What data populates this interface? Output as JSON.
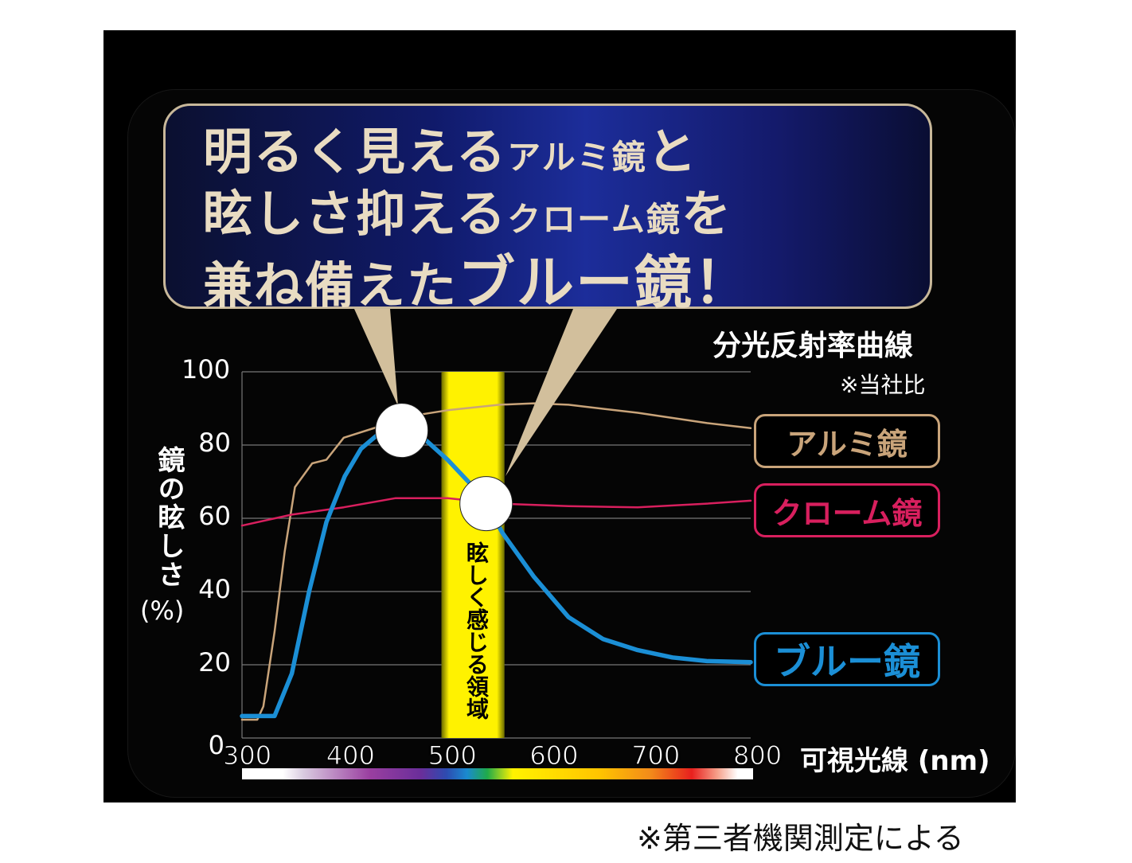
{
  "headline": {
    "line1": [
      "明るく見える",
      "アルミ鏡",
      "と"
    ],
    "line2": [
      "眩しさ抑える",
      "クローム鏡",
      "を"
    ],
    "line3": [
      "兼ね備えた",
      "ブルー鏡！"
    ]
  },
  "footnote": "※第三者機関測定による",
  "colors": {
    "alumi": "#c9a47a",
    "chrome": "#d81f5e",
    "blue": "#1b8fd6",
    "band": "#fff200",
    "callout_bg": "#141f80",
    "callout_text": "#e9dcc2"
  },
  "chart_data": {
    "type": "line",
    "title": "分光反射率曲線",
    "subtitle": "※当社比",
    "xlabel": "可視光線 (nm)",
    "ylabel": "鏡の眩しさ",
    "ylabel_unit": "(%)",
    "xlim": [
      300,
      800
    ],
    "ylim": [
      0,
      100
    ],
    "xticks": [
      300,
      400,
      500,
      600,
      700,
      800
    ],
    "yticks": [
      0,
      20,
      40,
      60,
      80,
      100
    ],
    "grid": true,
    "legend": "right",
    "highlight_band": {
      "label": "眩しく感じる領域",
      "x": [
        496,
        558
      ]
    },
    "markers": [
      {
        "x": 457,
        "y": 84
      },
      {
        "x": 540,
        "y": 64
      }
    ],
    "series": [
      {
        "name": "アルミ鏡",
        "color": "#c9a47a",
        "x": [
          300,
          315,
          321,
          332,
          342,
          352,
          369,
          383,
          400,
          434,
          468,
          502,
          553,
          587,
          621,
          689,
          757,
          800
        ],
        "y": [
          5,
          5,
          8.6,
          29,
          51,
          68.5,
          75,
          76,
          82,
          85,
          88,
          89.5,
          91,
          91.4,
          91,
          88.8,
          86,
          84.6
        ]
      },
      {
        "name": "クローム鏡",
        "color": "#d81f5e",
        "x": [
          300,
          349,
          400,
          451,
          502,
          553,
          621,
          689,
          757,
          800
        ],
        "y": [
          58,
          61,
          63,
          65.5,
          65.5,
          64,
          63.3,
          63,
          64,
          64.8
        ]
      },
      {
        "name": "ブルー鏡",
        "color": "#1b8fd6",
        "x": [
          300,
          320,
          332,
          349,
          366,
          383,
          401,
          417,
          434,
          457,
          478,
          502,
          536,
          556,
          587,
          621,
          655,
          689,
          723,
          757,
          800
        ],
        "y": [
          6,
          6,
          6,
          17.6,
          40,
          59,
          71.5,
          79,
          83,
          84.6,
          82,
          76,
          66,
          56,
          44,
          33,
          27,
          24,
          22,
          21,
          20.7
        ]
      }
    ]
  }
}
